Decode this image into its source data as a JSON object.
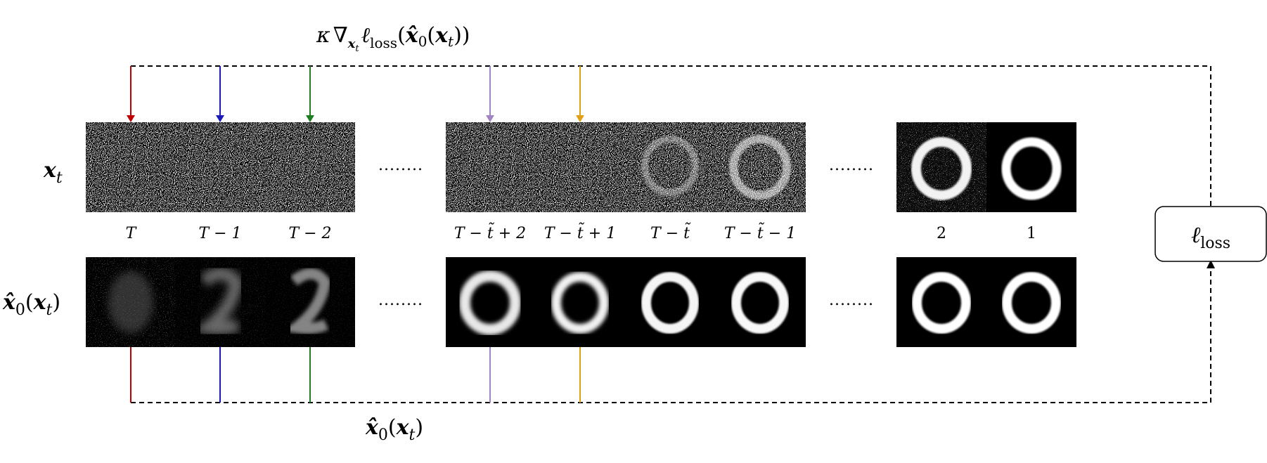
{
  "gradient_label": {
    "kappa": "κ",
    "nabla": "∇",
    "sub": "x",
    "subsub": "t",
    "ell": "ℓ",
    "loss": "loss",
    "lp": "(",
    "x0": "x̂",
    "zero": "0",
    "x": "x",
    "t": "t",
    "rp": "))"
  },
  "rows": {
    "xt": {
      "x": "x",
      "t": "t"
    },
    "x0": {
      "xhat": "x̂",
      "zero": "0",
      "x": "x",
      "t": "t"
    }
  },
  "timestep_labels": [
    "T",
    "T − 1",
    "T − 2",
    "T − t̃ + 2",
    "T − t̃ + 1",
    "T − t̃",
    "T − t̃ − 1",
    "2",
    "1"
  ],
  "ellipsis": "........",
  "loss_box": {
    "ell": "ℓ",
    "sub": "loss"
  },
  "bottom_label": {
    "xhat": "x̂",
    "zero": "0",
    "x": "x",
    "t": "t"
  },
  "colors": {
    "arrow_T": "#c00000",
    "arrow_T1": "#1a1ab8",
    "arrow_T2": "#1e7d1e",
    "arrow_Tt2": "#a184c2",
    "arrow_Tt1": "#e0a014"
  }
}
